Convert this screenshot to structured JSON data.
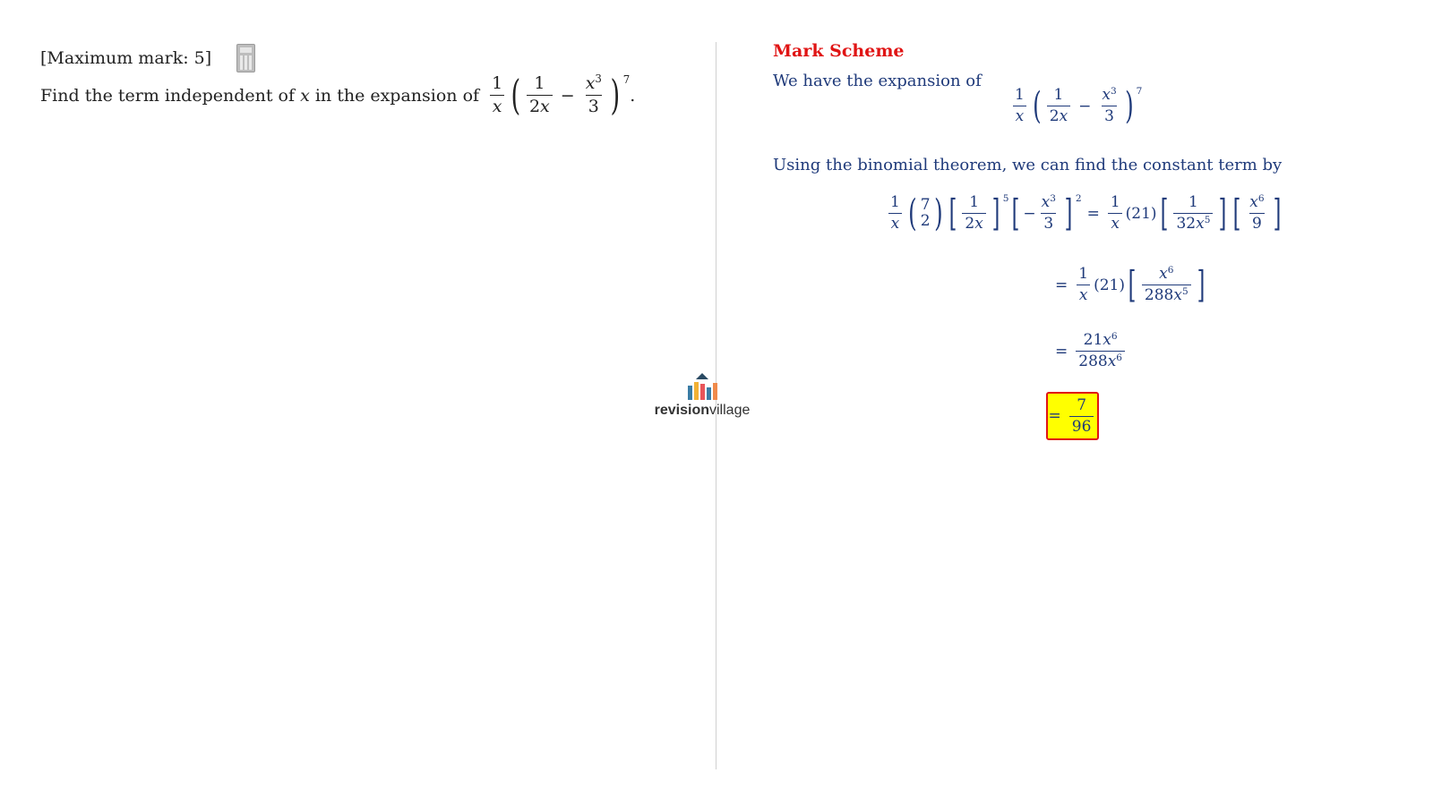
{
  "question": {
    "max_mark": "[Maximum mark: 5]",
    "text": "Find the term independent of",
    "variable": "x",
    "text_after": "in the expansion of"
  },
  "mark_scheme": {
    "title": "Mark Scheme",
    "line1": "We have the expansion of",
    "line2": "Using the binomial theorem, we can find the constant term by",
    "final_answer_num": "7",
    "final_answer_den": "96"
  },
  "logo": {
    "bold": "revision",
    "light": "village",
    "bar_colors": [
      "#3a7ca5",
      "#f2b134",
      "#e8555a",
      "#3a7ca5",
      "#f08a4b"
    ]
  },
  "colors": {
    "title_red": "#e01414",
    "text_navy": "#1f3a7a",
    "highlight": "#ffff00"
  }
}
